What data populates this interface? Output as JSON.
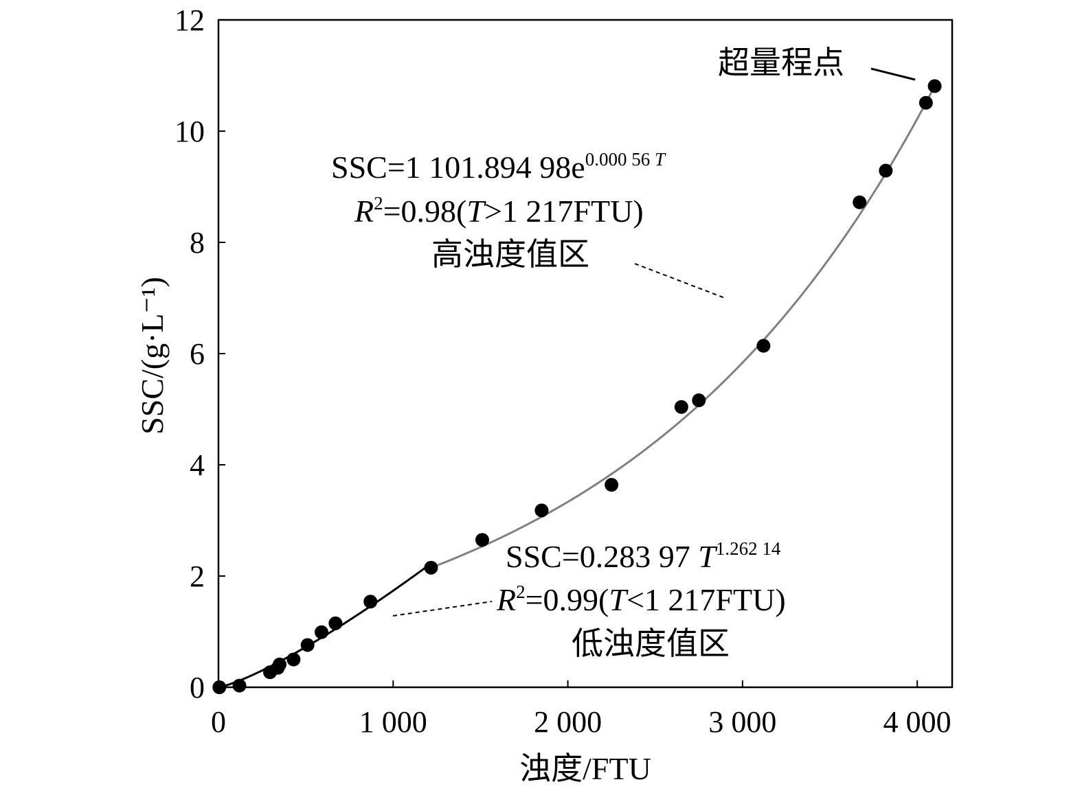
{
  "chart_data": {
    "type": "scatter",
    "title": "",
    "xlabel": "浊度/FTU",
    "ylabel": "SSC/(g·L⁻¹)",
    "xlim": [
      0,
      4200
    ],
    "ylim": [
      0,
      12
    ],
    "x_ticks": [
      0,
      1000,
      2000,
      3000,
      4000
    ],
    "x_tick_labels": [
      "0",
      "1 000",
      "2 000",
      "3 000",
      "4 000"
    ],
    "y_ticks": [
      0,
      2,
      4,
      6,
      8,
      10,
      12
    ],
    "y_tick_labels": [
      "0",
      "2",
      "4",
      "6",
      "8",
      "10",
      "12"
    ],
    "grid": false,
    "points": {
      "x": [
        5,
        120,
        295,
        340,
        350,
        430,
        510,
        590,
        670,
        870,
        1217,
        1510,
        1850,
        2250,
        2650,
        2750,
        3120,
        3670,
        3820,
        4050,
        4100
      ],
      "y": [
        0.0,
        0.03,
        0.27,
        0.35,
        0.41,
        0.5,
        0.76,
        0.99,
        1.15,
        1.54,
        2.15,
        2.65,
        3.18,
        3.64,
        5.04,
        5.16,
        6.14,
        8.72,
        9.29,
        10.51,
        10.81
      ]
    },
    "fits": [
      {
        "region": "low",
        "equation": "SSC=0.283 97 T^1.262 14",
        "r2": "0.99",
        "condition": "T<1 217FTU",
        "color": "#000000",
        "x_range": [
          0,
          1217
        ]
      },
      {
        "region": "high",
        "equation": "SSC=1 101.894 98e^0.000 56 T",
        "r2": "0.98",
        "condition": "T>1 217FTU",
        "color": "#808080",
        "x_range": [
          1217,
          4100
        ]
      }
    ],
    "annotations": {
      "high_eq_main": "SSC=1 101.894 98e",
      "high_eq_exp": "0.000 56 ",
      "high_eq_var": "T",
      "high_r2_R": "R",
      "high_r2_sq": "2",
      "high_r2_mid": "=0.98(",
      "high_r2_T": "T",
      "high_r2_tail": ">1 217FTU)",
      "high_region": "高浊度值区",
      "low_eq_main": "SSC=0.283 97 ",
      "low_eq_T": "T",
      "low_eq_exp": "1.262 14",
      "low_r2_R": "R",
      "low_r2_sq": "2",
      "low_r2_mid": "=0.99(",
      "low_r2_T": "T",
      "low_r2_tail": "<1 217FTU)",
      "low_region": "低浊度值区",
      "overrange": "超量程点"
    }
  }
}
